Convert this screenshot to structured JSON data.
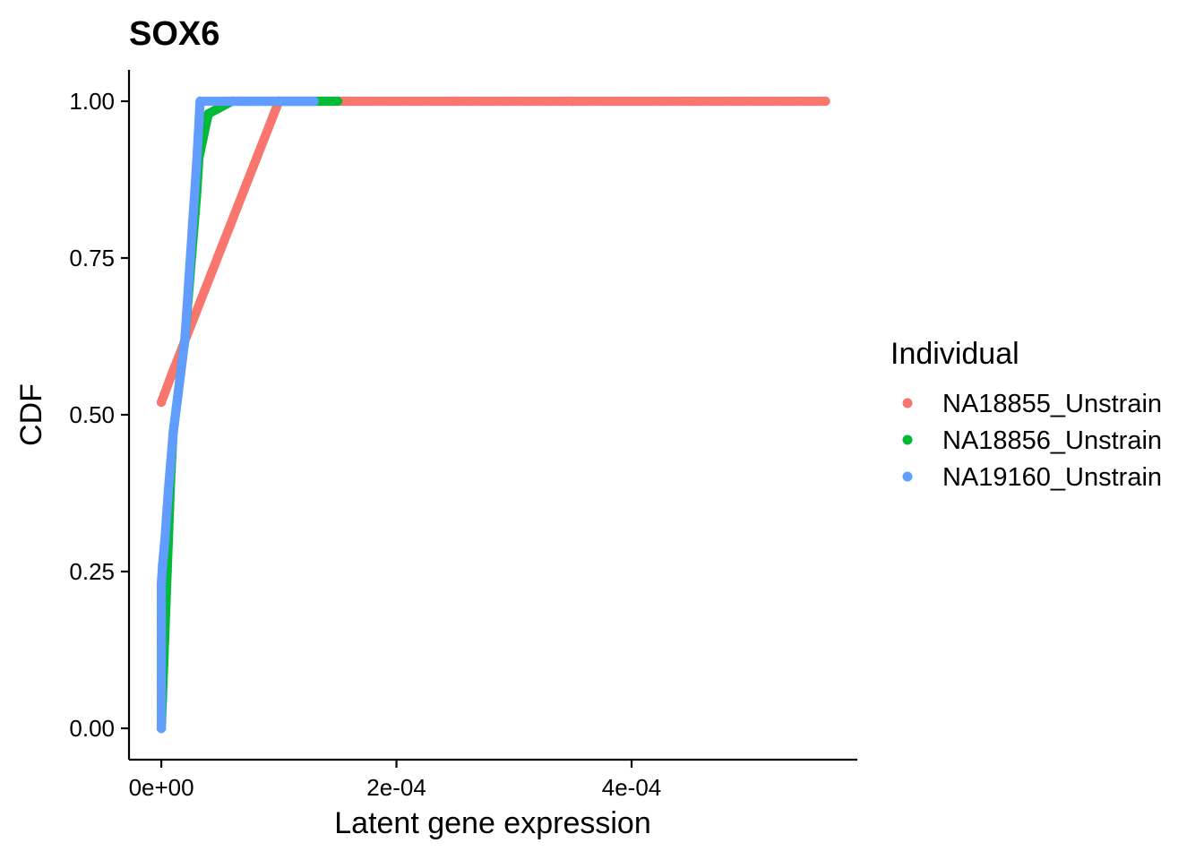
{
  "chart_data": {
    "type": "scatter",
    "title": "SOX6",
    "xlabel": "Latent gene expression",
    "ylabel": "CDF",
    "xlim": [
      -2.75e-05,
      0.000592
    ],
    "ylim": [
      -0.05,
      1.05
    ],
    "x_ticks": [
      {
        "value": 0,
        "label": "0e+00"
      },
      {
        "value": 0.0002,
        "label": "2e-04"
      },
      {
        "value": 0.0004,
        "label": "4e-04"
      }
    ],
    "y_ticks": [
      {
        "value": 0.0,
        "label": "0.00"
      },
      {
        "value": 0.25,
        "label": "0.25"
      },
      {
        "value": 0.5,
        "label": "0.50"
      },
      {
        "value": 0.75,
        "label": "0.75"
      },
      {
        "value": 1.0,
        "label": "1.00"
      }
    ],
    "grid": false,
    "legend": {
      "title": "Individual",
      "placement": "right"
    },
    "series": [
      {
        "name": "NA18855_Unstrain",
        "color": "#F8766D",
        "points": [
          [
            0,
            0.52
          ],
          [
            1e-05,
            0.57
          ],
          [
            0.0001,
            1.0
          ],
          [
            0.00016,
            1.0
          ],
          [
            0.00025,
            1.0
          ],
          [
            0.00035,
            1.0
          ],
          [
            0.00045,
            1.0
          ],
          [
            0.000565,
            1.0
          ]
        ]
      },
      {
        "name": "NA18856_Unstrain",
        "color": "#00BA38",
        "points": [
          [
            0,
            0.0
          ],
          [
            1e-06,
            0.05
          ],
          [
            2e-06,
            0.1
          ],
          [
            3e-06,
            0.15
          ],
          [
            4e-06,
            0.2
          ],
          [
            5e-06,
            0.25
          ],
          [
            6e-06,
            0.3
          ],
          [
            7e-06,
            0.35
          ],
          [
            8e-06,
            0.4
          ],
          [
            1e-05,
            0.47
          ],
          [
            2e-05,
            0.62
          ],
          [
            3e-05,
            0.85
          ],
          [
            3.2e-05,
            0.91
          ],
          [
            4e-05,
            0.98
          ],
          [
            6e-05,
            1.0
          ],
          [
            0.0001,
            1.0
          ],
          [
            0.00015,
            1.0
          ]
        ]
      },
      {
        "name": "NA19160_Unstrain",
        "color": "#619CFF",
        "points": [
          [
            0,
            0.0
          ],
          [
            0,
            0.03
          ],
          [
            0,
            0.065
          ],
          [
            0,
            0.1
          ],
          [
            0,
            0.13
          ],
          [
            0,
            0.165
          ],
          [
            0,
            0.2
          ],
          [
            0,
            0.23
          ],
          [
            1e-06,
            0.26
          ],
          [
            3e-06,
            0.3
          ],
          [
            6e-06,
            0.38
          ],
          [
            1e-05,
            0.47
          ],
          [
            2e-05,
            0.62
          ],
          [
            3e-05,
            0.9
          ],
          [
            3.3e-05,
            1.0
          ],
          [
            7e-05,
            1.0
          ],
          [
            0.00013,
            1.0
          ]
        ]
      }
    ]
  }
}
